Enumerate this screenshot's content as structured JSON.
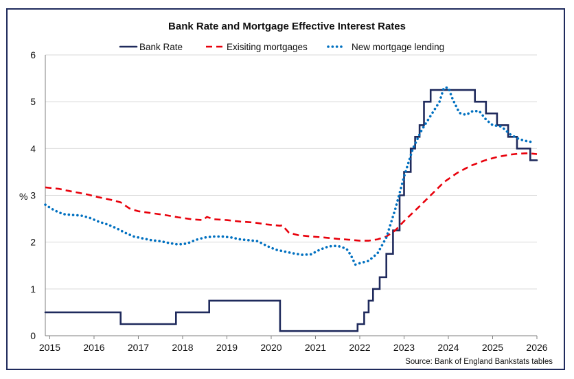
{
  "chart_data": {
    "type": "line",
    "title": "Bank Rate and Mortgage Effective Interest Rates",
    "ylabel": "%",
    "xlim": [
      2014.9,
      2026.0
    ],
    "ylim": [
      0,
      6
    ],
    "yticks": [
      0,
      1,
      2,
      3,
      4,
      5,
      6
    ],
    "xticks": [
      2015,
      2016,
      2017,
      2018,
      2019,
      2020,
      2021,
      2022,
      2023,
      2024,
      2025,
      2026
    ],
    "grid": true,
    "legend": "top-center",
    "source": "Source: Bank of England Bankstats tables",
    "series": [
      {
        "name": "Bank Rate",
        "style": "solid",
        "color": "#1f2a5c",
        "step": true,
        "points": [
          [
            2014.9,
            0.5
          ],
          [
            2016.6,
            0.25
          ],
          [
            2017.85,
            0.5
          ],
          [
            2018.6,
            0.75
          ],
          [
            2020.2,
            0.1
          ],
          [
            2021.95,
            0.25
          ],
          [
            2022.1,
            0.5
          ],
          [
            2022.2,
            0.75
          ],
          [
            2022.3,
            1.0
          ],
          [
            2022.45,
            1.25
          ],
          [
            2022.6,
            1.75
          ],
          [
            2022.75,
            2.25
          ],
          [
            2022.9,
            3.0
          ],
          [
            2023.0,
            3.5
          ],
          [
            2023.15,
            4.0
          ],
          [
            2023.25,
            4.25
          ],
          [
            2023.35,
            4.5
          ],
          [
            2023.45,
            5.0
          ],
          [
            2023.6,
            5.25
          ],
          [
            2024.6,
            5.0
          ],
          [
            2024.85,
            4.75
          ],
          [
            2025.1,
            4.5
          ],
          [
            2025.35,
            4.25
          ],
          [
            2025.55,
            4.0
          ],
          [
            2025.85,
            3.75
          ],
          [
            2026.0,
            3.75
          ]
        ]
      },
      {
        "name": "Exisiting mortgages",
        "style": "dashed",
        "color": "#e8000b",
        "step": false,
        "points": [
          [
            2014.9,
            3.17
          ],
          [
            2015.2,
            3.14
          ],
          [
            2015.5,
            3.08
          ],
          [
            2015.8,
            3.03
          ],
          [
            2016.1,
            2.96
          ],
          [
            2016.4,
            2.9
          ],
          [
            2016.6,
            2.85
          ],
          [
            2016.8,
            2.72
          ],
          [
            2017.0,
            2.66
          ],
          [
            2017.3,
            2.62
          ],
          [
            2017.6,
            2.58
          ],
          [
            2017.9,
            2.53
          ],
          [
            2018.2,
            2.49
          ],
          [
            2018.45,
            2.47
          ],
          [
            2018.55,
            2.54
          ],
          [
            2018.7,
            2.49
          ],
          [
            2019.0,
            2.47
          ],
          [
            2019.3,
            2.44
          ],
          [
            2019.6,
            2.42
          ],
          [
            2019.9,
            2.38
          ],
          [
            2020.2,
            2.35
          ],
          [
            2020.25,
            2.36
          ],
          [
            2020.4,
            2.2
          ],
          [
            2020.6,
            2.15
          ],
          [
            2020.9,
            2.12
          ],
          [
            2021.2,
            2.1
          ],
          [
            2021.5,
            2.07
          ],
          [
            2021.8,
            2.05
          ],
          [
            2022.0,
            2.03
          ],
          [
            2022.2,
            2.03
          ],
          [
            2022.4,
            2.06
          ],
          [
            2022.6,
            2.12
          ],
          [
            2022.8,
            2.25
          ],
          [
            2023.0,
            2.45
          ],
          [
            2023.3,
            2.72
          ],
          [
            2023.6,
            3.0
          ],
          [
            2023.9,
            3.28
          ],
          [
            2024.2,
            3.48
          ],
          [
            2024.5,
            3.63
          ],
          [
            2024.8,
            3.74
          ],
          [
            2025.1,
            3.82
          ],
          [
            2025.4,
            3.87
          ],
          [
            2025.6,
            3.89
          ],
          [
            2025.8,
            3.9
          ],
          [
            2026.0,
            3.88
          ]
        ]
      },
      {
        "name": "New mortgage lending",
        "style": "dotted",
        "color": "#0070c0",
        "step": false,
        "points": [
          [
            2014.9,
            2.8
          ],
          [
            2015.1,
            2.68
          ],
          [
            2015.3,
            2.6
          ],
          [
            2015.5,
            2.58
          ],
          [
            2015.7,
            2.57
          ],
          [
            2015.9,
            2.52
          ],
          [
            2016.1,
            2.44
          ],
          [
            2016.3,
            2.38
          ],
          [
            2016.5,
            2.3
          ],
          [
            2016.7,
            2.2
          ],
          [
            2016.9,
            2.12
          ],
          [
            2017.1,
            2.08
          ],
          [
            2017.3,
            2.04
          ],
          [
            2017.5,
            2.02
          ],
          [
            2017.7,
            1.98
          ],
          [
            2017.9,
            1.95
          ],
          [
            2018.1,
            1.97
          ],
          [
            2018.3,
            2.05
          ],
          [
            2018.5,
            2.1
          ],
          [
            2018.7,
            2.12
          ],
          [
            2018.9,
            2.12
          ],
          [
            2019.1,
            2.1
          ],
          [
            2019.3,
            2.06
          ],
          [
            2019.5,
            2.04
          ],
          [
            2019.7,
            2.02
          ],
          [
            2019.9,
            1.92
          ],
          [
            2020.1,
            1.84
          ],
          [
            2020.3,
            1.8
          ],
          [
            2020.5,
            1.76
          ],
          [
            2020.7,
            1.73
          ],
          [
            2020.9,
            1.74
          ],
          [
            2021.1,
            1.84
          ],
          [
            2021.3,
            1.91
          ],
          [
            2021.5,
            1.92
          ],
          [
            2021.7,
            1.86
          ],
          [
            2021.8,
            1.72
          ],
          [
            2021.9,
            1.52
          ],
          [
            2022.0,
            1.55
          ],
          [
            2022.2,
            1.6
          ],
          [
            2022.4,
            1.76
          ],
          [
            2022.6,
            2.1
          ],
          [
            2022.8,
            2.7
          ],
          [
            2023.0,
            3.4
          ],
          [
            2023.2,
            4.0
          ],
          [
            2023.4,
            4.4
          ],
          [
            2023.6,
            4.7
          ],
          [
            2023.8,
            5.0
          ],
          [
            2023.9,
            5.3
          ],
          [
            2024.0,
            5.3
          ],
          [
            2024.1,
            5.05
          ],
          [
            2024.25,
            4.76
          ],
          [
            2024.4,
            4.72
          ],
          [
            2024.55,
            4.8
          ],
          [
            2024.7,
            4.8
          ],
          [
            2024.85,
            4.62
          ],
          [
            2025.0,
            4.5
          ],
          [
            2025.2,
            4.47
          ],
          [
            2025.4,
            4.3
          ],
          [
            2025.6,
            4.2
          ],
          [
            2025.8,
            4.15
          ],
          [
            2025.9,
            4.14
          ]
        ]
      }
    ]
  }
}
